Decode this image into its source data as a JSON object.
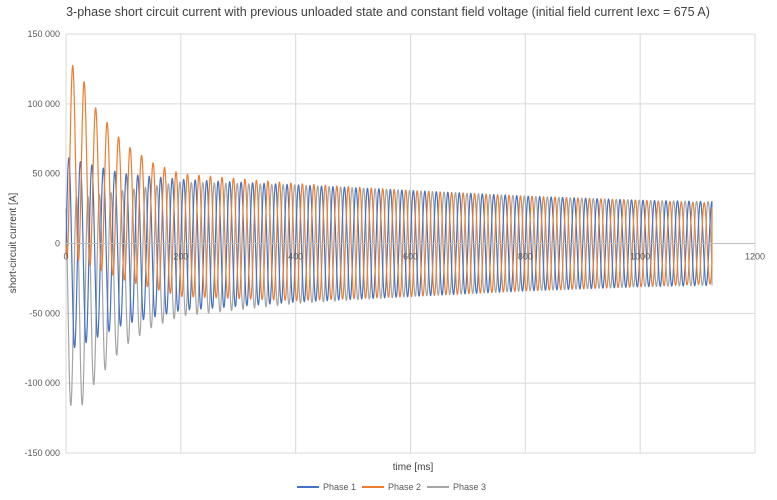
{
  "chart_data": {
    "type": "line",
    "title": "3-phase short circuit current with previous unloaded state and constant field voltage (initial field current Iexc = 675 A)",
    "xlabel": "time [ms]",
    "ylabel": "short-circuit current [A]",
    "xlim": [
      0,
      1200
    ],
    "ylim": [
      -150000,
      150000
    ],
    "x_ticks": [
      0,
      200,
      400,
      600,
      800,
      1000,
      1200
    ],
    "x_tick_labels": [
      "0",
      "200",
      "400",
      "600",
      "800",
      "1000",
      "1200"
    ],
    "y_ticks": [
      150000,
      100000,
      50000,
      0,
      -50000,
      -100000,
      -150000
    ],
    "y_tick_labels": [
      "150 000",
      "100 000",
      "50 000",
      "0",
      "-50 000",
      "-100 000",
      "-150 000"
    ],
    "grid": true,
    "legend_position": "bottom-center",
    "frequency_hz": 50,
    "time_end_ms": 1125,
    "series": [
      {
        "name": "Phase 1",
        "color": "#4472c4",
        "peak_envelope": [
          [
            0,
            62000
          ],
          [
            30,
            58000
          ],
          [
            100,
            50000
          ],
          [
            200,
            46000
          ],
          [
            400,
            42000
          ],
          [
            600,
            38000
          ],
          [
            800,
            34000
          ],
          [
            1000,
            31000
          ],
          [
            1125,
            30000
          ]
        ],
        "trough_envelope": [
          [
            0,
            -77000
          ],
          [
            30,
            -72000
          ],
          [
            100,
            -58000
          ],
          [
            200,
            -48000
          ],
          [
            400,
            -42000
          ],
          [
            600,
            -38000
          ],
          [
            800,
            -34000
          ],
          [
            1000,
            -31000
          ],
          [
            1125,
            -30000
          ]
        ],
        "end_value": 5000
      },
      {
        "name": "Phase 2",
        "color": "#ed7d31",
        "peak_envelope": [
          [
            0,
            128000
          ],
          [
            20,
            127000
          ],
          [
            50,
            98000
          ],
          [
            100,
            72000
          ],
          [
            150,
            58000
          ],
          [
            200,
            50000
          ],
          [
            400,
            43000
          ],
          [
            600,
            38000
          ],
          [
            800,
            34000
          ],
          [
            1000,
            31000
          ],
          [
            1125,
            29000
          ]
        ],
        "trough_envelope": [
          [
            0,
            -10000
          ],
          [
            20,
            -12000
          ],
          [
            100,
            -26000
          ],
          [
            200,
            -38000
          ],
          [
            400,
            -41000
          ],
          [
            600,
            -38000
          ],
          [
            800,
            -34000
          ],
          [
            1000,
            -31000
          ],
          [
            1125,
            -29000
          ]
        ],
        "end_value": 26000
      },
      {
        "name": "Phase 3",
        "color": "#a5a5a5",
        "peak_envelope": [
          [
            0,
            35000
          ],
          [
            30,
            33000
          ],
          [
            100,
            38000
          ],
          [
            200,
            44000
          ],
          [
            400,
            42000
          ],
          [
            600,
            38000
          ],
          [
            800,
            34000
          ],
          [
            1000,
            31000
          ],
          [
            1125,
            30000
          ]
        ],
        "trough_envelope": [
          [
            0,
            -115000
          ],
          [
            25,
            -118000
          ],
          [
            50,
            -100000
          ],
          [
            100,
            -74000
          ],
          [
            150,
            -60000
          ],
          [
            200,
            -52000
          ],
          [
            400,
            -43000
          ],
          [
            600,
            -38000
          ],
          [
            800,
            -34000
          ],
          [
            1000,
            -31000
          ],
          [
            1125,
            -30000
          ]
        ],
        "end_value": -30000
      }
    ]
  }
}
